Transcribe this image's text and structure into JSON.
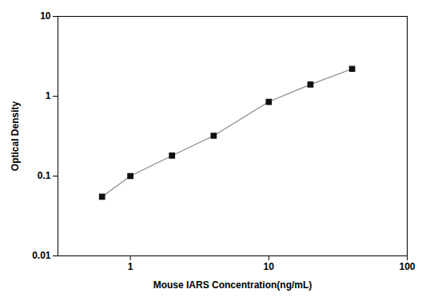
{
  "chart_data": {
    "type": "line",
    "x": [
      0.625,
      1.0,
      2.0,
      4.0,
      10.0,
      20.0,
      40.0
    ],
    "values": [
      0.055,
      0.1,
      0.18,
      0.32,
      0.85,
      1.4,
      2.2
    ],
    "xlabel": "Mouse IARS Concentration(ng/mL)",
    "ylabel": "Optical Density",
    "xlim": [
      0.3,
      100
    ],
    "ylim": [
      0.01,
      10
    ],
    "xticks": [
      1,
      10,
      100
    ],
    "yticks": [
      0.01,
      0.1,
      1,
      10
    ],
    "log": true,
    "color": "#888888",
    "colors": [
      "#111111",
      "#111111",
      "#111111",
      "#111111",
      "#111111",
      "#111111",
      "#111111"
    ],
    "marker": "square",
    "line_style": "solid",
    "grid": false
  }
}
